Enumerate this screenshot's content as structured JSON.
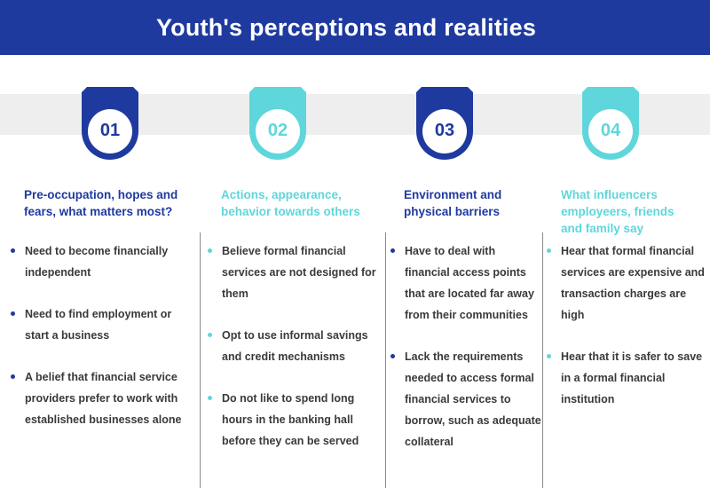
{
  "title": "Youth's perceptions and realities",
  "colors": {
    "dark_blue": "#1f3a9f",
    "light_teal": "#5fd6db",
    "band_gray": "#eeeeee",
    "text_gray": "#3a3a3a"
  },
  "columns": [
    {
      "number": "01",
      "heading": "Pre-occupation, hopes and fears, what matters most?",
      "heading_lines": [
        "Pre-occupation, hopes and",
        "fears, what matters most?"
      ],
      "items": [
        "Need to become financially independent",
        "Need to find employment or start a business",
        "A belief that financial service providers prefer to work with established businesses alone"
      ]
    },
    {
      "number": "02",
      "heading": "Actions, appearance, behavior towards others",
      "heading_lines": [
        "Actions, appearance,",
        "behavior towards others"
      ],
      "items": [
        "Believe formal financial services are not designed for them",
        "Opt to use informal savings and credit mechanisms",
        "Do not like to spend long hours in the banking hall before they can be served"
      ]
    },
    {
      "number": "03",
      "heading": "Environment and physical barriers",
      "heading_lines": [
        "Environment and",
        "physical barriers"
      ],
      "items": [
        "Have to deal with financial access points that are located far away from their communities",
        "Lack the requirements needed to access formal financial services to borrow, such as adequate collateral"
      ]
    },
    {
      "number": "04",
      "heading": "What influencers employeers, friends and family say",
      "heading_lines": [
        "What influencers",
        "employeers, friends",
        "and family say"
      ],
      "items": [
        "Hear that formal financial services are expensive and transaction charges are high",
        "Hear that it is safer to save in a formal financial institution"
      ]
    }
  ]
}
